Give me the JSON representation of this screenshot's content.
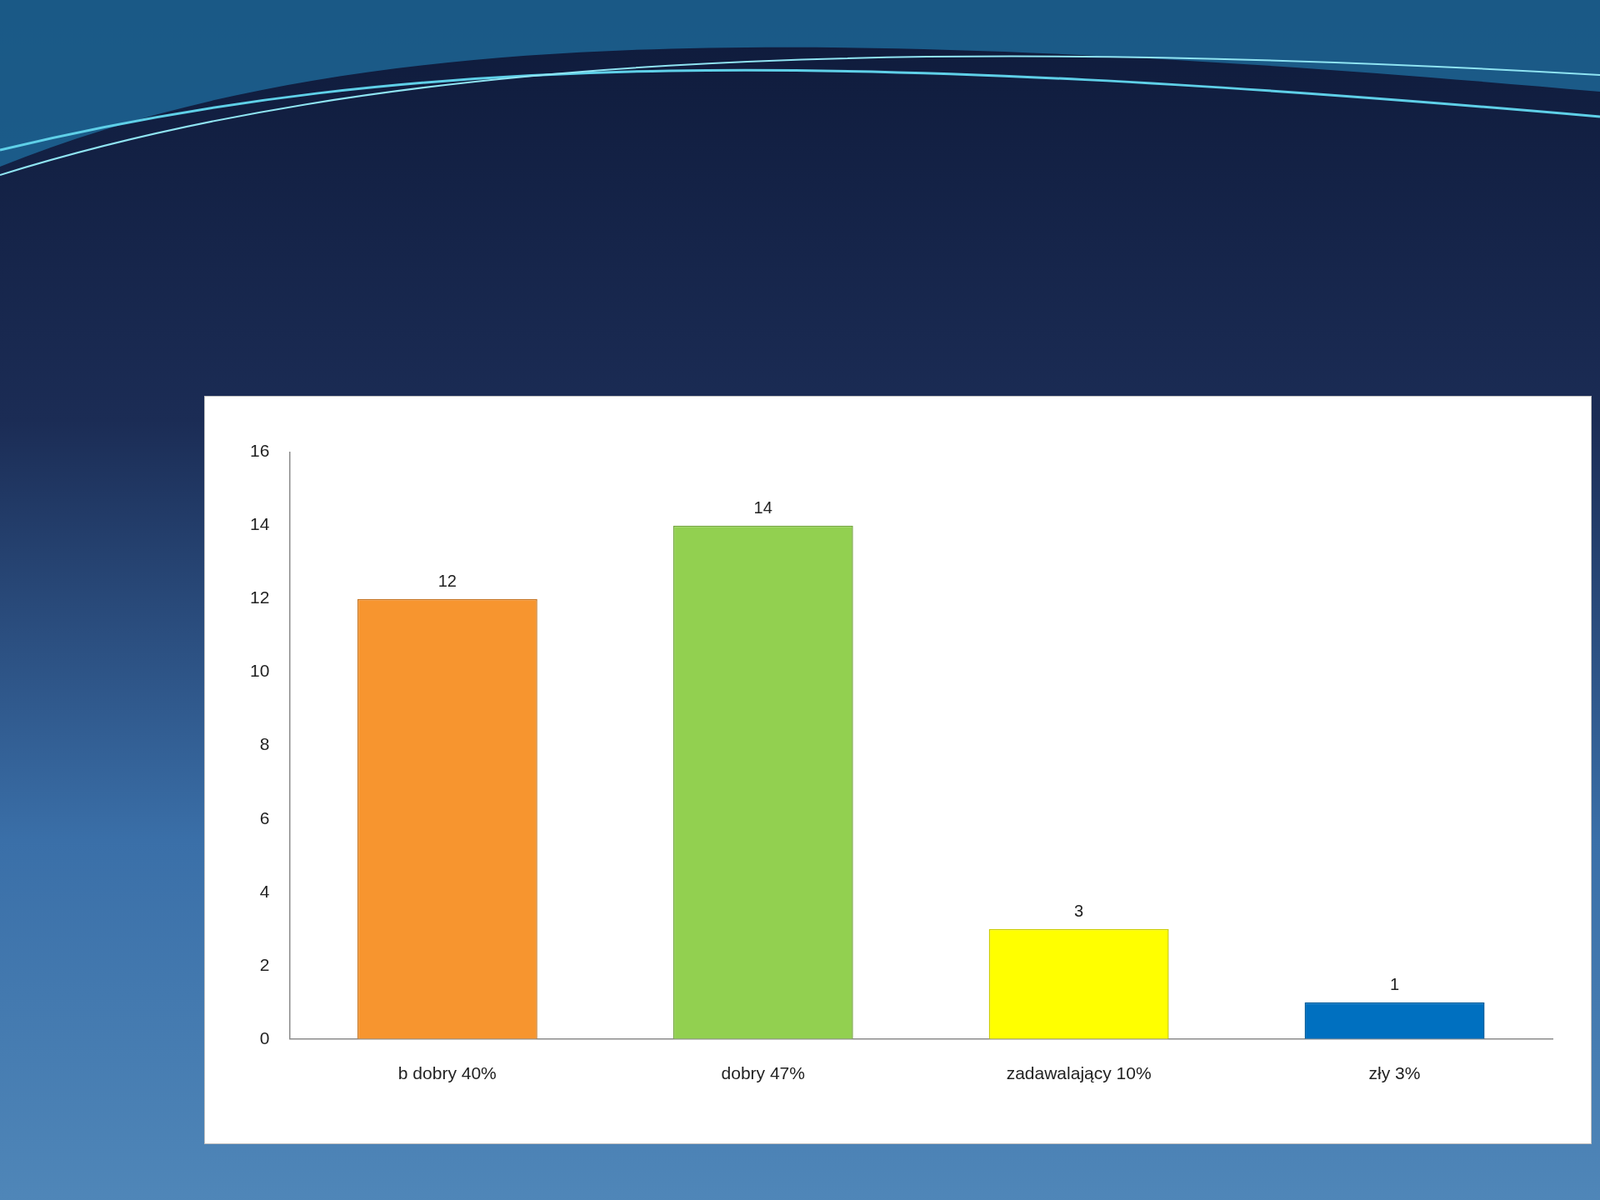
{
  "chart_data": {
    "type": "bar",
    "categories": [
      "b dobry 40%",
      "dobry 47%",
      "zadawalający 10%",
      "zły 3%"
    ],
    "values": [
      12,
      14,
      3,
      1
    ],
    "colors": [
      "#f7952f",
      "#92d050",
      "#ffff00",
      "#0070c0"
    ],
    "ylim": [
      0,
      16
    ],
    "yticks": [
      0,
      2,
      4,
      6,
      8,
      10,
      12,
      14,
      16
    ],
    "grid": false,
    "data_labels": true
  }
}
